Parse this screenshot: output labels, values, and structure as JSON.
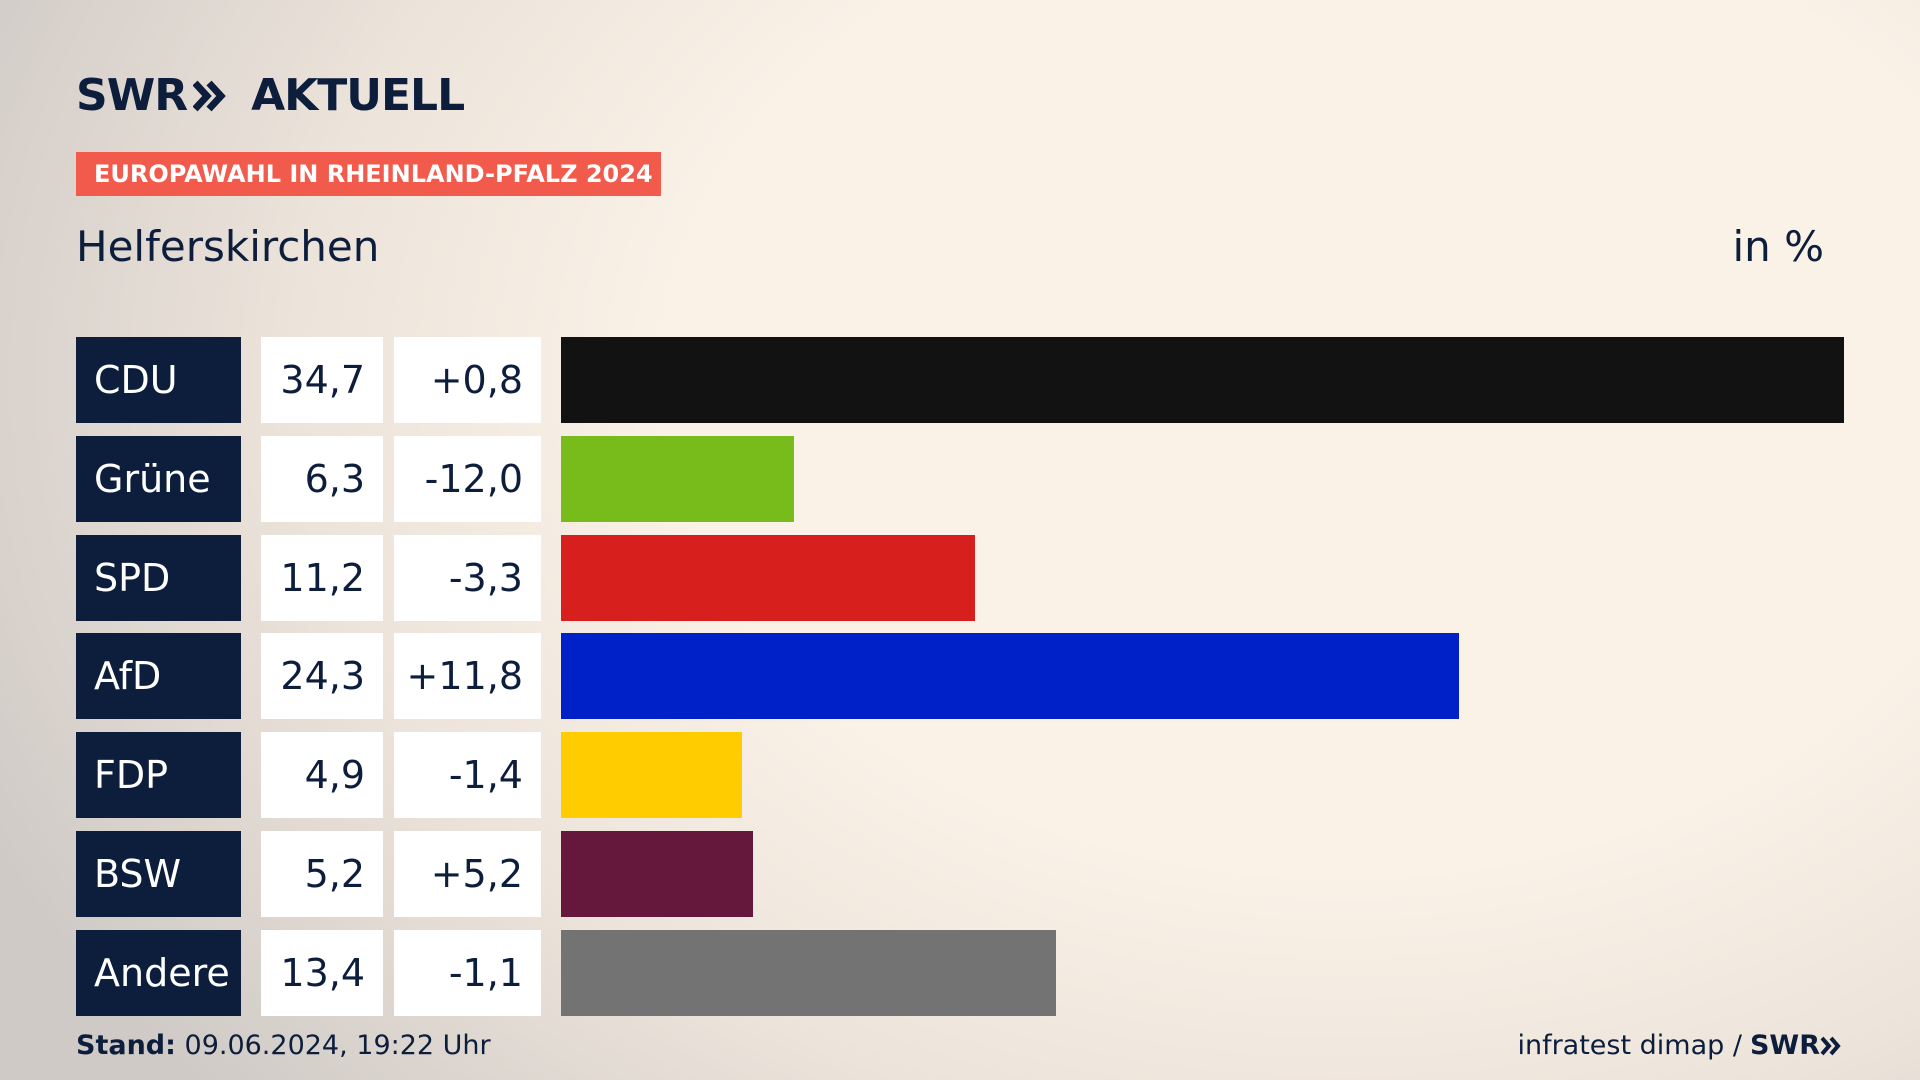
{
  "brand": {
    "name": "SWR",
    "product": "AKTUELL"
  },
  "tag": "EUROPAWAHL IN RHEINLAND-PFALZ 2024",
  "chart_data": {
    "type": "bar",
    "title": "Helferskirchen",
    "unit_label": "in %",
    "categories": [
      "CDU",
      "Grüne",
      "SPD",
      "AfD",
      "FDP",
      "BSW",
      "Andere"
    ],
    "values": [
      34.7,
      6.3,
      11.2,
      24.3,
      4.9,
      5.2,
      13.4
    ],
    "value_labels": [
      "34,7",
      "6,3",
      "11,2",
      "24,3",
      "4,9",
      "5,2",
      "13,4"
    ],
    "changes": [
      0.8,
      -12.0,
      -3.3,
      11.8,
      -1.4,
      5.2,
      -1.1
    ],
    "change_labels": [
      "+0,8",
      "-12,0",
      "-3,3",
      "+11,8",
      "-1,4",
      "+5,2",
      "-1,1"
    ],
    "colors": [
      "#121212",
      "#78bc1b",
      "#d71f1d",
      "#0021c8",
      "#ffcc00",
      "#66173c",
      "#737373"
    ]
  },
  "footer": {
    "stand_label": "Stand:",
    "stand_value": "09.06.2024, 19:22 Uhr",
    "source": "infratest dimap /",
    "source_brand": "SWR"
  }
}
